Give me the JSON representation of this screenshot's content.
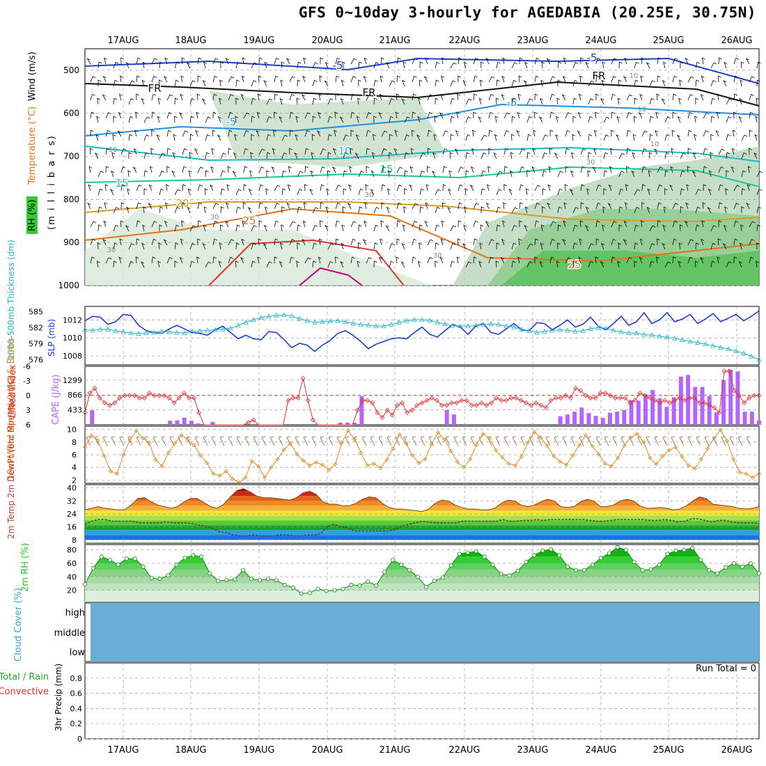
{
  "title": "GFS 0~10day 3-hourly for AGEDABIA (20.25E, 30.75N)",
  "colors": {
    "wind_barb": "#000000",
    "temp_line": "#ff8c00",
    "fr_line": "#000000",
    "rh_fill": "#1fbf1f",
    "slp": "#1a3fcc",
    "thickness": "#22b2c8",
    "lifted_index": "#e03030",
    "cape": "#b266ff",
    "wind_speed": "#e08a1e",
    "cloud": "#6aaed6",
    "rh2m": "#22cc22",
    "grid": "#999999"
  },
  "chart_data": [
    {
      "type": "pressure-time-cross-section",
      "dates": [
        "17AUG",
        "18AUG",
        "19AUG",
        "20AUG",
        "21AUG",
        "22AUG",
        "23AUG",
        "24AUG",
        "25AUG",
        "26AUG"
      ],
      "ylabel_rh": "RH (%)",
      "ylabel_temp": "Temperature (°C)",
      "ylabel_wind": "Wind (m/s)",
      "ylabel_axis": "(m i l l i b a r s)",
      "ylim": [
        1000,
        450
      ],
      "y_ticks": [
        "500",
        "600",
        "700",
        "800",
        "900",
        "1000"
      ],
      "isotherm_labels": [
        {
          "label": "-5",
          "level": "-5°C"
        },
        {
          "label": "-5",
          "level": "-5°C"
        },
        {
          "label": "-5",
          "level": "-5°C"
        },
        {
          "label": "-5",
          "level": "-5°C"
        },
        {
          "label": "10",
          "level": "10°C"
        },
        {
          "label": "15",
          "level": "15°C"
        },
        {
          "label": "15",
          "level": "15°C"
        },
        {
          "label": "20",
          "level": "20°C"
        },
        {
          "label": "25",
          "level": "25°C"
        },
        {
          "label": "25",
          "level": "25°C"
        },
        {
          "label": "FR",
          "level": "freezing"
        },
        {
          "label": "FR",
          "level": "freezing"
        },
        {
          "label": "FR",
          "level": "freezing"
        }
      ],
      "rh_contour_labels": [
        "30",
        "30",
        "30",
        "30",
        "30",
        "10",
        "10",
        "10",
        "10"
      ]
    },
    {
      "type": "line",
      "panel": "thickness-slp",
      "ylabel_thickness": "1000-500mb Thickness (dm)",
      "ylabel_slp": "SLP (mb)",
      "thickness_ticks": [
        "585",
        "582",
        "579",
        "576"
      ],
      "slp_ticks": [
        "1012",
        "1010",
        "1008"
      ],
      "thickness_ylim": [
        575,
        586
      ],
      "slp_ylim": [
        1007,
        1013.5
      ],
      "series": [
        {
          "name": "SLP (mb)",
          "values": [
            1011.9,
            1012.4,
            1012.3,
            1011.5,
            1011.8,
            1012.6,
            1012.5,
            1011.4,
            1010.8,
            1010.6,
            1010.5,
            1011.0,
            1011.4,
            1011.0,
            1010.6,
            1010.5,
            1010.3,
            1010.9,
            1011.3,
            1010.6,
            1009.9,
            1010.3,
            1009.9,
            1009.8,
            1010.7,
            1010.6,
            1009.8,
            1008.9,
            1009.4,
            1009.2,
            1008.5,
            1009.2,
            1009.7,
            1010.5,
            1010.8,
            1010.3,
            1009.6,
            1008.8,
            1009.3,
            1009.6,
            1009.9,
            1010.0,
            1009.9,
            1010.6,
            1011.2,
            1010.4,
            1010.1,
            1010.8,
            1011.5,
            1011.2,
            1010.4,
            1011.3,
            1011.6,
            1010.6,
            1010.4,
            1011.0,
            1011.6,
            1010.9,
            1010.8,
            1011.7,
            1011.6,
            1010.9,
            1011.4,
            1012.0,
            1011.2,
            1011.5,
            1012.3,
            1011.3,
            1010.9,
            1011.6,
            1012.4,
            1011.4,
            1011.8,
            1012.8,
            1011.6,
            1012.0,
            1012.8,
            1011.8,
            1012.1,
            1012.6,
            1011.6,
            1012.1,
            1012.7,
            1011.8,
            1012.2,
            1012.6,
            1011.9,
            1012.4,
            1013.0
          ]
        },
        {
          "name": "1000-500mb Thickness (dm)",
          "values": [
            581.6,
            581.5,
            581.7,
            581.7,
            581.4,
            581.2,
            581.0,
            580.9,
            581.0,
            581.1,
            581.3,
            581.2,
            581.1,
            581.0,
            581.3,
            581.4,
            581.5,
            581.6,
            581.7,
            581.9,
            582.4,
            583.0,
            583.5,
            583.9,
            584.1,
            584.3,
            584.4,
            584.2,
            583.7,
            583.3,
            583.0,
            583.1,
            583.2,
            583.3,
            583.1,
            582.8,
            582.6,
            582.5,
            582.3,
            582.3,
            582.6,
            583.0,
            583.3,
            583.5,
            583.5,
            583.4,
            583.0,
            582.7,
            582.4,
            582.3,
            582.3,
            582.4,
            582.6,
            582.7,
            582.6,
            582.3,
            582.1,
            581.7,
            581.4,
            581.1,
            581.3,
            581.5,
            581.6,
            581.5,
            581.3,
            581.4,
            581.8,
            582.0,
            581.9,
            581.5,
            581.2,
            581.0,
            581.0,
            580.7,
            580.6,
            580.4,
            580.2,
            580.0,
            579.7,
            579.4,
            579.2,
            578.9,
            578.6,
            578.3,
            578.0,
            577.6,
            577.2,
            576.6,
            576.0
          ]
        }
      ]
    },
    {
      "type": "bar-line",
      "panel": "lifted-index-cape",
      "ylabel_li": "Lifted Index",
      "ylabel_cape": "CAPE (J/kg)",
      "li_ticks": [
        "-6",
        "-3",
        "0",
        "3",
        "6"
      ],
      "cape_ticks": [
        "1299",
        "866",
        "433"
      ],
      "li_ylim": [
        6,
        -6
      ],
      "cape_ylim": [
        0,
        1700
      ],
      "series": [
        {
          "name": "Lifted Index",
          "values": [
            3.5,
            -0.5,
            -1.5,
            0.5,
            1.5,
            2.0,
            1.5,
            0.5,
            0.0,
            0.0,
            0.0,
            0.5,
            0.5,
            -0.5,
            0.0,
            0.0,
            0.0,
            0.5,
            1.5,
            0.5,
            -0.5,
            0.5,
            0.5,
            3.5,
            6.0,
            6.0,
            6.0,
            6.0,
            6.0,
            6.0,
            6.0,
            6.0,
            6.0,
            5.5,
            5.0,
            6.0,
            6.0,
            6.0,
            6.0,
            6.0,
            6.0,
            1.0,
            0.5,
            0.5,
            -3.5,
            1.0,
            5.0,
            6.0,
            6.0,
            6.0,
            6.0,
            6.0,
            6.0,
            6.0,
            6.0,
            3.0,
            1.0,
            1.0,
            1.5,
            3.5,
            4.5,
            3.0,
            4.0,
            2.0,
            1.5,
            3.5,
            3.0,
            2.0,
            1.5,
            1.0,
            0.5,
            1.0,
            2.0,
            2.0,
            1.5,
            1.5,
            1.0,
            1.0,
            2.0,
            2.0,
            1.5,
            2.0,
            1.5,
            0.5,
            1.0,
            1.0,
            0.5,
            0.5,
            1.0,
            1.5,
            2.0,
            1.5,
            2.0,
            2.5,
            1.0,
            0.5,
            0.5,
            0.0,
            0.5,
            -1.5,
            -1.0,
            0.0,
            0.5,
            0.5,
            -0.5,
            -0.5,
            0.0,
            0.5,
            0.5,
            0.5,
            1.5,
            1.0,
            -0.5,
            0.0,
            0.5,
            1.0,
            1.5,
            1.0,
            1.5,
            1.0,
            0.5,
            1.0,
            0.5,
            0.5,
            1.5,
            1.5,
            2.0,
            2.5,
            3.5,
            -5.0,
            -5.0,
            -1.0,
            0.0,
            1.5,
            0.5,
            0.0,
            0.0
          ]
        },
        {
          "name": "CAPE (J/kg)",
          "values": [
            0,
            420,
            0,
            0,
            0,
            0,
            0,
            0,
            0,
            0,
            0,
            0,
            120,
            130,
            210,
            120,
            40,
            0,
            80,
            0,
            0,
            0,
            0,
            0,
            0,
            0,
            0,
            0,
            0,
            0,
            0,
            0,
            0,
            0,
            0,
            0,
            60,
            60,
            60,
            830,
            0,
            0,
            0,
            0,
            0,
            0,
            0,
            0,
            0,
            0,
            0,
            430,
            300,
            0,
            0,
            0,
            0,
            0,
            0,
            0,
            0,
            0,
            0,
            0,
            0,
            0,
            0,
            250,
            300,
            380,
            500,
            340,
            260,
            200,
            350,
            380,
            430,
            720,
            700,
            880,
            1010,
            770,
            520,
            800,
            1400,
            1450,
            1100,
            1100,
            830,
            360,
            1300,
            1600,
            1550,
            380,
            380,
            130
          ]
        }
      ]
    },
    {
      "type": "line",
      "panel": "wind-speed",
      "ylabel": "10m Wind Speed (m/s) & Barbs",
      "y_ticks": [
        "10",
        "8",
        "6",
        "4",
        "2"
      ],
      "ylim": [
        1.5,
        10.5
      ],
      "series": [
        {
          "name": "10m Wind Speed (m/s)",
          "values": [
            7.2,
            9.0,
            8.3,
            5.8,
            3.4,
            3.0,
            6.0,
            8.3,
            9.8,
            8.6,
            7.9,
            5.2,
            4.2,
            6.3,
            7.8,
            9.1,
            8.4,
            7.5,
            5.9,
            4.7,
            3.0,
            2.7,
            3.4,
            2.2,
            1.6,
            2.4,
            5.0,
            4.2,
            2.4,
            4.0,
            5.3,
            6.8,
            7.8,
            6.1,
            5.1,
            4.3,
            4.8,
            4.4,
            3.6,
            4.5,
            7.9,
            9.8,
            8.4,
            6.3,
            4.3,
            4.6,
            3.9,
            5.2,
            7.0,
            9.2,
            7.8,
            5.9,
            4.7,
            5.3,
            7.7,
            9.5,
            8.4,
            6.6,
            4.9,
            4.0,
            5.3,
            7.6,
            9.3,
            8.6,
            6.7,
            5.6,
            4.6,
            4.3,
            5.7,
            7.9,
            9.6,
            8.7,
            7.4,
            5.8,
            4.9,
            4.4,
            5.9,
            7.5,
            9.1,
            7.4,
            6.1,
            4.6,
            4.2,
            5.5,
            7.4,
            8.7,
            9.3,
            8.0,
            5.5,
            4.5,
            5.8,
            6.7,
            7.2,
            5.7,
            4.3,
            3.8,
            5.3,
            7.0,
            8.6,
            9.9,
            8.2,
            5.3,
            3.2,
            3.0,
            2.4,
            3.0
          ]
        }
      ]
    },
    {
      "type": "area",
      "panel": "temperature",
      "ylabel": "2m Temp 2m DewPt (6hr Min/Max) (°C)",
      "y_ticks": [
        "40",
        "32",
        "24",
        "16",
        "8"
      ],
      "ylim": [
        6,
        42
      ],
      "series": [
        {
          "name": "2m Temp",
          "values": [
            26.5,
            27.5,
            28.5,
            27.5,
            27.0,
            26.5,
            26.5,
            29.5,
            33.5,
            34.0,
            31.5,
            29.5,
            28.5,
            27.5,
            28.5,
            31.5,
            33.5,
            33.5,
            31.0,
            28.5,
            27.5,
            30.0,
            34.5,
            38.5,
            39.5,
            37.5,
            35.0,
            34.0,
            34.0,
            33.5,
            33.0,
            32.5,
            34.0,
            37.0,
            38.0,
            36.0,
            31.5,
            30.0,
            30.0,
            29.0,
            29.0,
            30.5,
            33.0,
            34.5,
            34.0,
            30.5,
            28.0,
            27.0,
            27.0,
            26.5,
            26.0,
            25.5,
            27.0,
            30.5,
            32.5,
            32.0,
            29.5,
            28.0,
            27.0,
            27.0,
            26.5,
            26.5,
            27.5,
            30.5,
            32.5,
            32.0,
            29.5,
            28.5,
            29.5,
            31.5,
            33.0,
            32.0,
            28.5,
            28.0,
            28.5,
            31.5,
            33.0,
            32.0,
            28.5,
            28.5,
            29.5,
            32.0,
            33.0,
            32.0,
            29.0,
            27.5,
            27.5,
            28.0,
            27.5,
            26.5,
            27.0,
            29.0,
            32.0,
            34.5,
            33.5,
            30.0,
            29.5,
            29.0,
            28.5,
            27.5,
            27.0,
            27.5,
            28.5
          ]
        },
        {
          "name": "2m DewPt",
          "values": [
            17.5,
            19.5,
            20.5,
            20.5,
            19.5,
            19.5,
            19.5,
            19.5,
            18.5,
            18.5,
            18.5,
            18.5,
            19.0,
            18.5,
            18.5,
            18.5,
            18.0,
            17.0,
            16.5,
            15.0,
            13.0,
            12.5,
            11.0,
            10.5,
            10.5,
            11.0,
            10.5,
            10.5,
            10.5,
            11.0,
            11.0,
            10.5,
            10.5,
            11.0,
            11.0,
            12.0,
            16.5,
            17.5,
            16.0,
            15.5,
            13.5,
            13.5,
            13.5,
            13.5,
            13.5,
            13.5,
            14.5,
            16.5,
            17.5,
            18.5,
            19.5,
            19.0,
            18.5,
            18.5,
            18.5,
            18.5,
            19.5,
            19.5,
            19.5,
            19.5,
            19.5,
            19.5,
            20.5,
            19.5,
            19.5,
            20.0,
            20.0,
            20.5,
            20.0,
            20.5,
            20.5,
            20.5,
            20.5,
            20.5,
            20.5,
            20.0,
            19.5,
            19.5,
            20.0,
            20.5,
            20.5,
            20.5,
            20.5,
            20.5,
            20.0,
            20.0,
            20.5,
            20.0,
            19.0,
            19.5,
            21.0,
            21.0,
            20.0,
            19.0,
            20.0,
            20.0,
            19.0,
            18.5,
            18.5,
            18.5,
            18.0
          ]
        }
      ]
    },
    {
      "type": "area",
      "panel": "rh2m",
      "ylabel": "2m RH (%)",
      "y_ticks": [
        "80",
        "60",
        "40",
        "20"
      ],
      "ylim": [
        3,
        88
      ],
      "series": [
        {
          "name": "2m RH (%)",
          "values": [
            29,
            53,
            70,
            65,
            58,
            67,
            67,
            55,
            38,
            37,
            42,
            58,
            68,
            72,
            70,
            45,
            34,
            35,
            36,
            50,
            37,
            35,
            37,
            35,
            28,
            24,
            15,
            16,
            22,
            19,
            20,
            22,
            28,
            27,
            33,
            27,
            47,
            65,
            58,
            50,
            40,
            25,
            34,
            39,
            57,
            74,
            76,
            78,
            70,
            58,
            44,
            42,
            49,
            62,
            72,
            79,
            81,
            72,
            55,
            50,
            50,
            58,
            68,
            75,
            84,
            80,
            62,
            50,
            51,
            58,
            74,
            79,
            80,
            83,
            65,
            50,
            45,
            54,
            60,
            55,
            60,
            45
          ]
        }
      ]
    },
    {
      "type": "area",
      "panel": "cloud-cover",
      "ylabel": "Cloud Cover (%)",
      "y_ticks": [
        "high",
        "middle",
        "low"
      ]
    },
    {
      "type": "bar",
      "panel": "precip",
      "ylabel": "3hr Precip (mm)",
      "legend_total": "Total / Rain",
      "legend_convective": "Convective",
      "run_total": "Run Total = 0",
      "y_ticks": [
        "0.8",
        "0.6",
        "0.4",
        "0.2",
        "0"
      ],
      "ylim": [
        0,
        1
      ],
      "values": []
    }
  ]
}
